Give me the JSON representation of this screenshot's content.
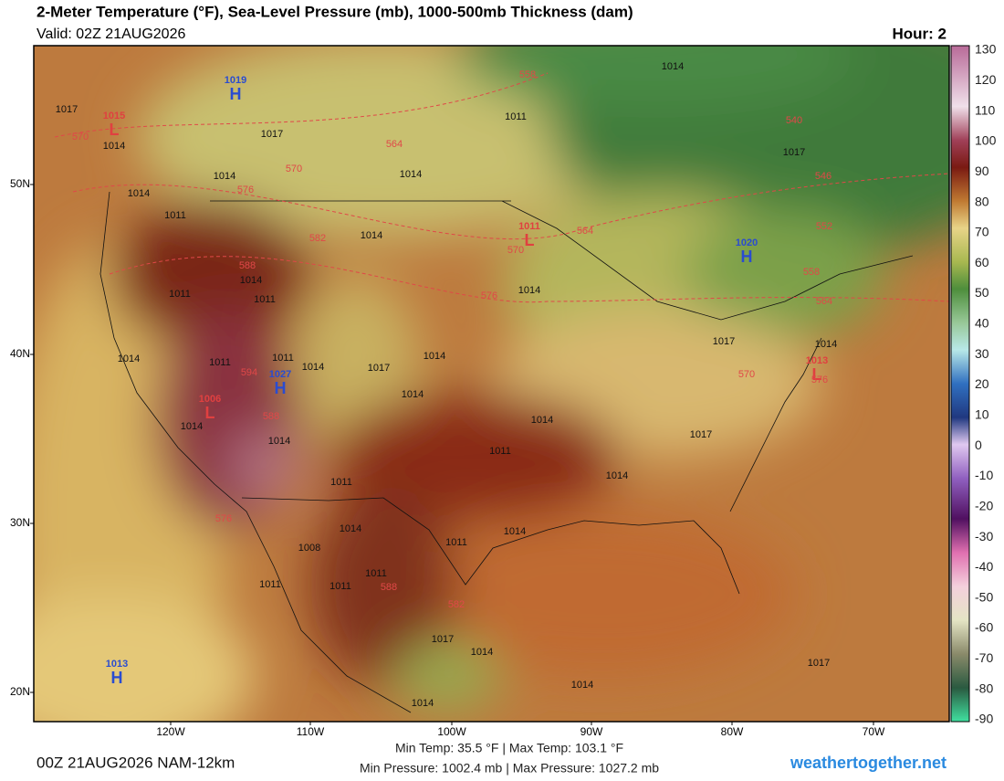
{
  "header": {
    "title": "2-Meter Temperature (°F), Sea-Level Pressure (mb), 1000-500mb Thickness (dam)",
    "valid": "Valid: 02Z 21AUG2026",
    "hour": "Hour: 2"
  },
  "map": {
    "lat_labels": [
      "50N",
      "40N",
      "30N",
      "20N"
    ],
    "lon_labels": [
      "120W",
      "110W",
      "100W",
      "90W",
      "80W",
      "70W"
    ],
    "centers": [
      {
        "symbol": "H",
        "value": "1019"
      },
      {
        "symbol": "L",
        "value": "1015"
      },
      {
        "symbol": "L",
        "value": "1011"
      },
      {
        "symbol": "H",
        "value": "1020"
      },
      {
        "symbol": "H",
        "value": "1027"
      },
      {
        "symbol": "L",
        "value": "1006"
      },
      {
        "symbol": "L",
        "value": "1013"
      },
      {
        "symbol": "H",
        "value": "1013"
      }
    ],
    "isobar_labels": [
      "1017",
      "1014",
      "1017",
      "1014",
      "1014",
      "1014",
      "1011",
      "1014",
      "1017",
      "1011",
      "1014",
      "1014",
      "1011",
      "1011",
      "1014",
      "1014",
      "1011",
      "1011",
      "1014",
      "1017",
      "1014",
      "1014",
      "1017",
      "1014",
      "1014",
      "1014",
      "1014",
      "1011",
      "1017",
      "1014",
      "1011",
      "1014",
      "1011",
      "1014",
      "1008",
      "1011",
      "1011",
      "1011",
      "1017",
      "1014",
      "1017",
      "1014",
      "1014"
    ],
    "thickness_labels": [
      "558",
      "564",
      "570",
      "576",
      "570",
      "582",
      "588",
      "570",
      "576",
      "564",
      "546",
      "552",
      "558",
      "564",
      "570",
      "576",
      "594",
      "588",
      "576",
      "588",
      "582",
      "540"
    ]
  },
  "colorbar": {
    "labels": [
      "130",
      "120",
      "110",
      "100",
      "90",
      "80",
      "70",
      "60",
      "50",
      "40",
      "30",
      "20",
      "10",
      "0",
      "-10",
      "-20",
      "-30",
      "-40",
      "-50",
      "-60",
      "-70",
      "-80",
      "-90"
    ]
  },
  "footer": {
    "run": "00Z 21AUG2026 NAM-12km",
    "temp_range": "Min Temp:  35.5 °F | Max Temp: 103.1 °F",
    "pressure_range": "Min Pressure: 1002.4 mb | Max Pressure: 1027.2 mb",
    "site": "weathertogether.net"
  }
}
